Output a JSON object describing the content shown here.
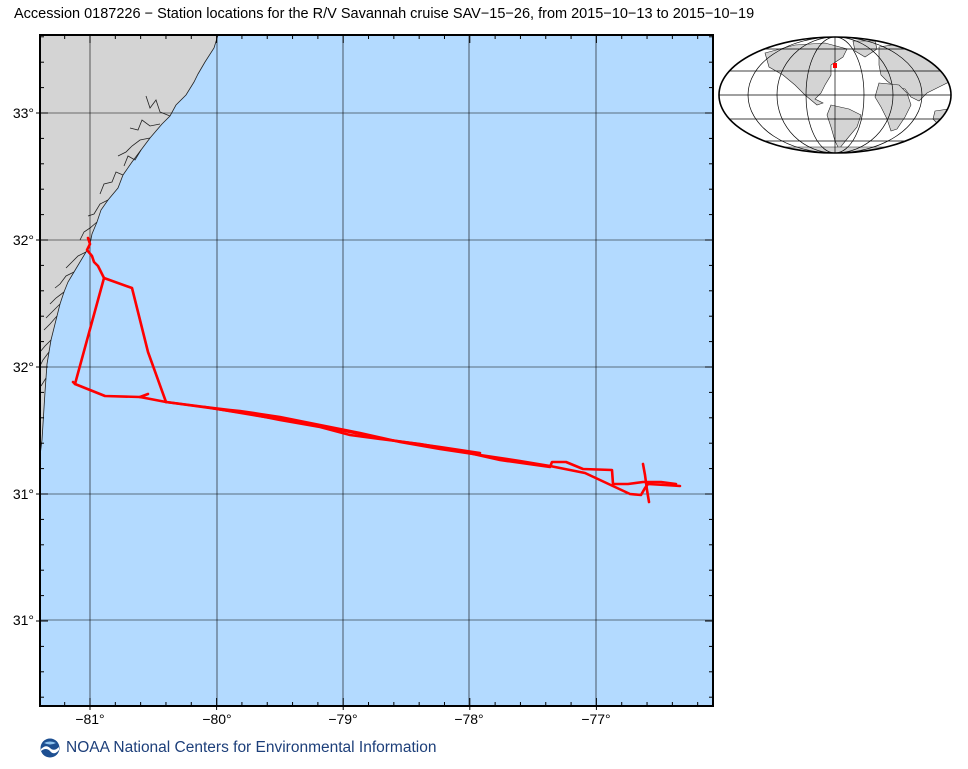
{
  "title": "Accession 0187226 − Station locations for the R/V Savannah cruise SAV−15−26, from 2015−10−13 to 2015−10−19",
  "map": {
    "land_color": "#d4d4d4",
    "ocean_color": "#b3daff",
    "track_color": "#ff0000",
    "grid": true,
    "y_tick_labels": [
      "33°",
      "32°",
      "32°",
      "31°",
      "31°"
    ],
    "x_tick_labels": [
      "−81°",
      "−80°",
      "−79°",
      "−78°",
      "−77°"
    ]
  },
  "inset": {
    "projection": "Mollweide",
    "land_color": "#d4d4d4",
    "ocean_color": "#ffffff",
    "marker_color": "#ff0000"
  },
  "footer": {
    "logo_icon": "noaa-logo-icon",
    "text": "NOAA National Centers for Environmental Information",
    "text_color": "#1d3f7a"
  }
}
